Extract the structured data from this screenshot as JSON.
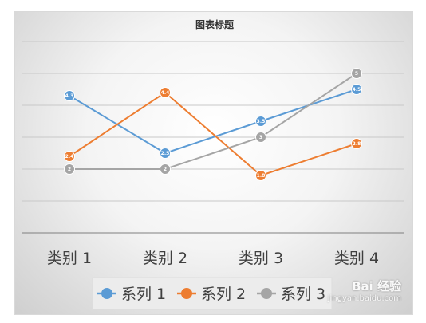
{
  "chart_data": {
    "type": "line",
    "title": "图表标题",
    "categories": [
      "类别 1",
      "类别 2",
      "类别 3",
      "类别 4"
    ],
    "series": [
      {
        "name": "系列 1",
        "values": [
          4.3,
          2.5,
          3.5,
          4.5
        ],
        "labels": [
          "4.3",
          "2.5",
          "3.5",
          "4.5"
        ],
        "color": "#5b9bd5"
      },
      {
        "name": "系列 2",
        "values": [
          2.4,
          4.4,
          1.8,
          2.8
        ],
        "labels": [
          "2.4",
          "4.4",
          "1.8",
          "2.8"
        ],
        "color": "#ed7d31"
      },
      {
        "name": "系列 3",
        "values": [
          2,
          2,
          3,
          5
        ],
        "labels": [
          "2",
          "2",
          "3",
          "5"
        ],
        "color": "#a5a5a5"
      }
    ],
    "ylim": [
      0,
      6
    ],
    "grid": true,
    "legend": "bottom",
    "data_labels": true
  },
  "watermark": {
    "main": "Bai 经验",
    "sub": "jingyan.baidu.com"
  }
}
